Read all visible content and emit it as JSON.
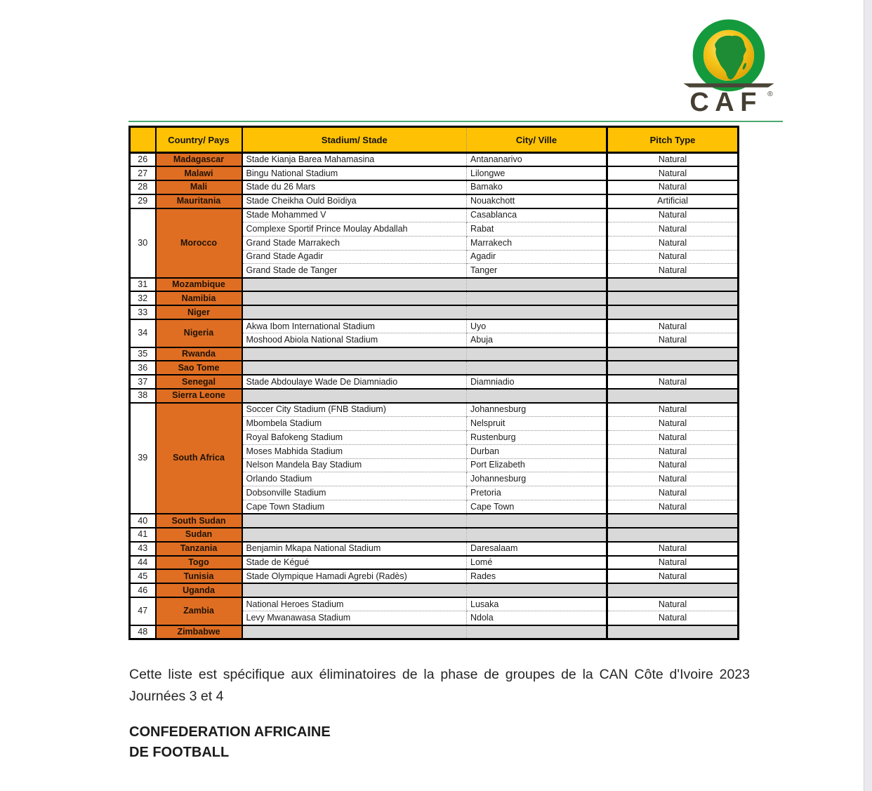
{
  "logo": {
    "brand": "CAF",
    "registered": "®"
  },
  "colors": {
    "header_yellow": "#ffc103",
    "country_orange": "#df6e23",
    "empty_cell_gray": "#d9d9d9",
    "logo_green": "#149a3c",
    "logo_yellow": "#ffd400",
    "divider_green": "#4aa96d"
  },
  "table": {
    "headers": {
      "num": "",
      "country": "Country/ Pays",
      "stadium": "Stadium/ Stade",
      "city": "City/ Ville",
      "pitch": "Pitch Type"
    },
    "rows": [
      {
        "num": "26",
        "country": "Madagascar",
        "entries": [
          {
            "stadium": "Stade Kianja Barea Mahamasina",
            "city": "Antananarivo",
            "pitch": "Natural"
          }
        ]
      },
      {
        "num": "27",
        "country": "Malawi",
        "entries": [
          {
            "stadium": "Bingu National Stadium",
            "city": "Lilongwe",
            "pitch": "Natural"
          }
        ]
      },
      {
        "num": "28",
        "country": "Mali",
        "entries": [
          {
            "stadium": "Stade du 26 Mars",
            "city": "Bamako",
            "pitch": "Natural"
          }
        ]
      },
      {
        "num": "29",
        "country": "Mauritania",
        "entries": [
          {
            "stadium": "Stade Cheikha Ould Boïdiya",
            "city": "Nouakchott",
            "pitch": "Artificial"
          }
        ]
      },
      {
        "num": "30",
        "country": "Morocco",
        "entries": [
          {
            "stadium": "Stade Mohammed V",
            "city": "Casablanca",
            "pitch": "Natural"
          },
          {
            "stadium": "Complexe Sportif Prince Moulay Abdallah",
            "city": "Rabat",
            "pitch": "Natural"
          },
          {
            "stadium": "Grand Stade Marrakech",
            "city": "Marrakech",
            "pitch": "Natural"
          },
          {
            "stadium": "Grand Stade Agadir",
            "city": "Agadir",
            "pitch": "Natural"
          },
          {
            "stadium": "Grand Stade de Tanger",
            "city": "Tanger",
            "pitch": "Natural"
          }
        ]
      },
      {
        "num": "31",
        "country": "Mozambique",
        "entries": []
      },
      {
        "num": "32",
        "country": "Namibia",
        "entries": []
      },
      {
        "num": "33",
        "country": "Niger",
        "entries": []
      },
      {
        "num": "34",
        "country": "Nigeria",
        "entries": [
          {
            "stadium": "Akwa Ibom International Stadium",
            "city": "Uyo",
            "pitch": "Natural"
          },
          {
            "stadium": "Moshood Abiola National Stadium",
            "city": "Abuja",
            "pitch": "Natural"
          }
        ]
      },
      {
        "num": "35",
        "country": "Rwanda",
        "entries": []
      },
      {
        "num": "36",
        "country": "Sao Tome",
        "entries": []
      },
      {
        "num": "37",
        "country": "Senegal",
        "entries": [
          {
            "stadium": "Stade Abdoulaye Wade De Diamniadio",
            "city": "Diamniadio",
            "pitch": "Natural"
          }
        ]
      },
      {
        "num": "38",
        "country": "Sierra Leone",
        "entries": []
      },
      {
        "num": "39",
        "country": "South Africa",
        "entries": [
          {
            "stadium": "Soccer City Stadium (FNB Stadium)",
            "city": "Johannesburg",
            "pitch": "Natural"
          },
          {
            "stadium": "Mbombela Stadium",
            "city": "Nelspruit",
            "pitch": "Natural"
          },
          {
            "stadium": "Royal Bafokeng Stadium",
            "city": "Rustenburg",
            "pitch": "Natural"
          },
          {
            "stadium": "Moses Mabhida Stadium",
            "city": "Durban",
            "pitch": "Natural"
          },
          {
            "stadium": "Nelson Mandela Bay Stadium",
            "city": "Port Elizabeth",
            "pitch": "Natural"
          },
          {
            "stadium": "Orlando Stadium",
            "city": "Johannesburg",
            "pitch": "Natural"
          },
          {
            "stadium": "Dobsonville Stadium",
            "city": "Pretoria",
            "pitch": "Natural"
          },
          {
            "stadium": "Cape Town Stadium",
            "city": "Cape Town",
            "pitch": "Natural"
          }
        ]
      },
      {
        "num": "40",
        "country": "South Sudan",
        "entries": []
      },
      {
        "num": "41",
        "country": "Sudan",
        "entries": []
      },
      {
        "num": "43",
        "country": "Tanzania",
        "entries": [
          {
            "stadium": "Benjamin Mkapa National Stadium",
            "city": "Daresalaam",
            "pitch": "Natural"
          }
        ]
      },
      {
        "num": "44",
        "country": "Togo",
        "entries": [
          {
            "stadium": "Stade de Kégué",
            "city": "Lomé",
            "pitch": "Natural"
          }
        ]
      },
      {
        "num": "45",
        "country": "Tunisia",
        "entries": [
          {
            "stadium": "Stade Olympique Hamadi Agrebi (Radès)",
            "city": "Rades",
            "pitch": "Natural"
          }
        ]
      },
      {
        "num": "46",
        "country": "Uganda",
        "entries": []
      },
      {
        "num": "47",
        "country": "Zambia",
        "entries": [
          {
            "stadium": "National Heroes Stadium",
            "city": "Lusaka",
            "pitch": "Natural"
          },
          {
            "stadium": "Levy Mwanawasa Stadium",
            "city": "Ndola",
            "pitch": "Natural"
          }
        ]
      },
      {
        "num": "48",
        "country": "Zimbabwe",
        "entries": []
      }
    ]
  },
  "footer": {
    "note": "Cette liste est spécifique aux éliminatoires de la phase de groupes de la CAN Côte d'Ivoire 2023 Journées 3 et 4",
    "org_line1": "CONFEDERATION AFRICAINE",
    "org_line2": "DE FOOTBALL"
  }
}
